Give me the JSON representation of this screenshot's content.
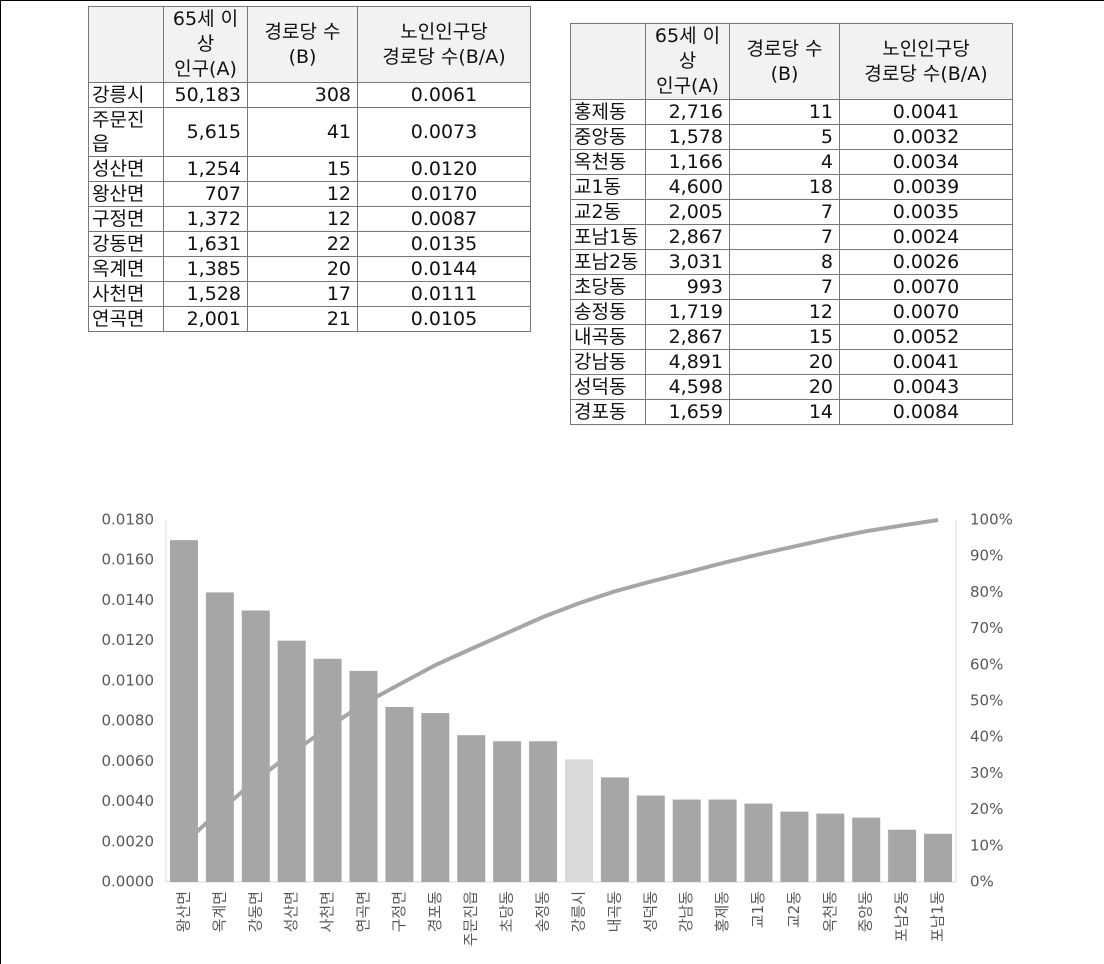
{
  "tables": [
    {
      "header": [
        "",
        "65세 이상\n인구(A)",
        "경로당 수\n(B)",
        "노인인구당\n경로당 수(B/A)"
      ],
      "rows": [
        [
          "강릉시",
          "50,183",
          "308",
          "0.0061"
        ],
        [
          "주문진읍",
          "5,615",
          "41",
          "0.0073"
        ],
        [
          "성산면",
          "1,254",
          "15",
          "0.0120"
        ],
        [
          "왕산면",
          "707",
          "12",
          "0.0170"
        ],
        [
          "구정면",
          "1,372",
          "12",
          "0.0087"
        ],
        [
          "강동면",
          "1,631",
          "22",
          "0.0135"
        ],
        [
          "옥계면",
          "1,385",
          "20",
          "0.0144"
        ],
        [
          "사천면",
          "1,528",
          "17",
          "0.0111"
        ],
        [
          "연곡면",
          "2,001",
          "21",
          "0.0105"
        ]
      ]
    },
    {
      "header": [
        "",
        "65세 이상\n인구(A)",
        "경로당 수\n(B)",
        "노인인구당\n경로당 수(B/A)"
      ],
      "rows": [
        [
          "홍제동",
          "2,716",
          "11",
          "0.0041"
        ],
        [
          "중앙동",
          "1,578",
          "5",
          "0.0032"
        ],
        [
          "옥천동",
          "1,166",
          "4",
          "0.0034"
        ],
        [
          "교1동",
          "4,600",
          "18",
          "0.0039"
        ],
        [
          "교2동",
          "2,005",
          "7",
          "0.0035"
        ],
        [
          "포남1동",
          "2,867",
          "7",
          "0.0024"
        ],
        [
          "포남2동",
          "3,031",
          "8",
          "0.0026"
        ],
        [
          "초당동",
          "993",
          "7",
          "0.0070"
        ],
        [
          "송정동",
          "1,719",
          "12",
          "0.0070"
        ],
        [
          "내곡동",
          "2,867",
          "15",
          "0.0052"
        ],
        [
          "강남동",
          "4,891",
          "20",
          "0.0041"
        ],
        [
          "성덕동",
          "4,598",
          "20",
          "0.0043"
        ],
        [
          "경포동",
          "1,659",
          "14",
          "0.0084"
        ]
      ]
    }
  ],
  "chart_data": {
    "type": "pareto",
    "categories": [
      "왕산면",
      "옥계면",
      "강동면",
      "성산면",
      "사천면",
      "연곡면",
      "구정면",
      "경포동",
      "주문진읍",
      "초당동",
      "송정동",
      "강릉시",
      "내곡동",
      "성덕동",
      "강남동",
      "홍제동",
      "교1동",
      "교2동",
      "옥천동",
      "중앙동",
      "포남2동",
      "포남1동"
    ],
    "series": [
      {
        "type": "bar",
        "values": [
          0.017,
          0.0144,
          0.0135,
          0.012,
          0.0111,
          0.0105,
          0.0087,
          0.0084,
          0.0073,
          0.007,
          0.007,
          0.0061,
          0.0052,
          0.0043,
          0.0041,
          0.0041,
          0.0039,
          0.0035,
          0.0034,
          0.0032,
          0.0026,
          0.0024
        ],
        "colors": [
          "#a6a6a6",
          "#a6a6a6",
          "#a6a6a6",
          "#a6a6a6",
          "#a6a6a6",
          "#a6a6a6",
          "#a6a6a6",
          "#a6a6a6",
          "#a6a6a6",
          "#a6a6a6",
          "#a6a6a6",
          "#d9d9d9",
          "#a6a6a6",
          "#a6a6a6",
          "#a6a6a6",
          "#a6a6a6",
          "#a6a6a6",
          "#a6a6a6",
          "#a6a6a6",
          "#a6a6a6",
          "#a6a6a6",
          "#a6a6a6"
        ]
      },
      {
        "type": "line",
        "axis": "y2",
        "color": "#a6a6a6",
        "values": [
          10.6,
          19.7,
          28.1,
          35.6,
          42.6,
          49.2,
          54.6,
          59.9,
          64.4,
          68.8,
          73.2,
          77.0,
          80.3,
          83.0,
          85.5,
          88.1,
          90.5,
          92.7,
          94.9,
          96.9,
          98.5,
          100
        ]
      }
    ],
    "ylim": [
      0,
      0.018
    ],
    "yticks": [
      {
        "value": 0,
        "label": "0.0000"
      },
      {
        "value": 0.002,
        "label": "0.0020"
      },
      {
        "value": 0.004,
        "label": "0.0040"
      },
      {
        "value": 0.006,
        "label": "0.0060"
      },
      {
        "value": 0.008,
        "label": "0.0080"
      },
      {
        "value": 0.01,
        "label": "0.0100"
      },
      {
        "value": 0.012,
        "label": "0.0120"
      },
      {
        "value": 0.014,
        "label": "0.0140"
      },
      {
        "value": 0.016,
        "label": "0.0160"
      },
      {
        "value": 0.018,
        "label": "0.0180"
      }
    ],
    "y2lim": [
      0,
      100
    ],
    "y2ticks": [
      {
        "value": 0,
        "label": "0%"
      },
      {
        "value": 10,
        "label": "10%"
      },
      {
        "value": 20,
        "label": "20%"
      },
      {
        "value": 30,
        "label": "30%"
      },
      {
        "value": 40,
        "label": "40%"
      },
      {
        "value": 50,
        "label": "50%"
      },
      {
        "value": 60,
        "label": "60%"
      },
      {
        "value": 70,
        "label": "70%"
      },
      {
        "value": 80,
        "label": "80%"
      },
      {
        "value": 90,
        "label": "90%"
      },
      {
        "value": 100,
        "label": "100%"
      }
    ]
  }
}
